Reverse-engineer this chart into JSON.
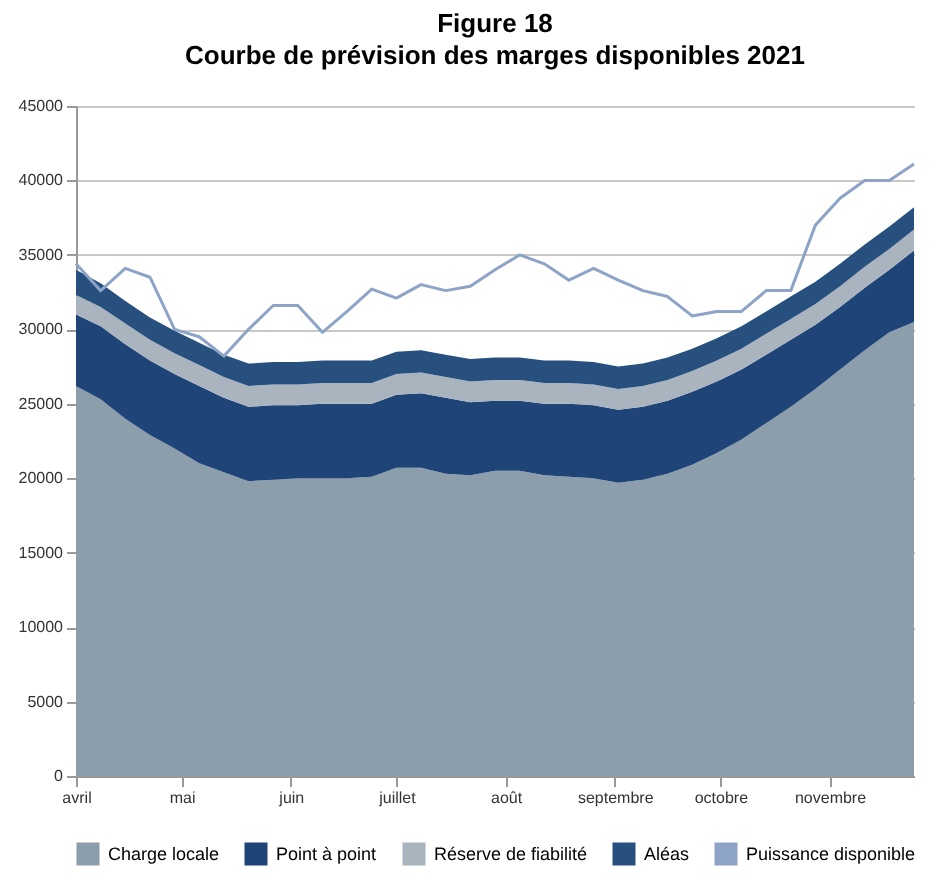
{
  "chart_data": {
    "type": "area",
    "stacked": true,
    "title": "Figure 18",
    "subtitle": "Courbe de prévision des marges disponibles 2021",
    "x": [
      "2021-04-01",
      "2021-04-08",
      "2021-04-15",
      "2021-04-22",
      "2021-04-29",
      "2021-05-06",
      "2021-05-13",
      "2021-05-20",
      "2021-05-27",
      "2021-06-03",
      "2021-06-10",
      "2021-06-17",
      "2021-06-24",
      "2021-07-01",
      "2021-07-08",
      "2021-07-15",
      "2021-07-22",
      "2021-07-29",
      "2021-08-05",
      "2021-08-12",
      "2021-08-19",
      "2021-08-26",
      "2021-09-02",
      "2021-09-09",
      "2021-09-16",
      "2021-09-23",
      "2021-09-30",
      "2021-10-07",
      "2021-10-14",
      "2021-10-21",
      "2021-10-28",
      "2021-11-04",
      "2021-11-11",
      "2021-11-18",
      "2021-11-25"
    ],
    "xlim": [
      "2021-04-01",
      "2021-11-25"
    ],
    "xticks": [
      {
        "value": "2021-04-01",
        "label": "avril"
      },
      {
        "value": "2021-05-01",
        "label": "mai"
      },
      {
        "value": "2021-06-01",
        "label": "juin"
      },
      {
        "value": "2021-07-01",
        "label": "juillet"
      },
      {
        "value": "2021-08-01",
        "label": "août"
      },
      {
        "value": "2021-09-01",
        "label": "septembre"
      },
      {
        "value": "2021-10-01",
        "label": "octobre"
      },
      {
        "value": "2021-11-01",
        "label": "novembre"
      }
    ],
    "ylim": [
      0,
      45000
    ],
    "yticks": [
      0,
      5000,
      10000,
      15000,
      20000,
      25000,
      30000,
      35000,
      40000,
      45000
    ],
    "grid": "y",
    "legend": "bottom",
    "series": [
      {
        "name": "Charge locale",
        "color": "#8c9dab",
        "values": [
          26200,
          25300,
          24000,
          22900,
          22000,
          21000,
          20400,
          19800,
          19900,
          20000,
          20000,
          20000,
          20100,
          20700,
          20700,
          20300,
          20200,
          20500,
          20500,
          20200,
          20100,
          20000,
          19700,
          19900,
          20300,
          20900,
          21700,
          22600,
          23700,
          24800,
          26000,
          27300,
          28600,
          29800,
          30500
        ]
      },
      {
        "name": "Point à point",
        "color": "#1f4477",
        "values": [
          4800,
          4900,
          5000,
          5000,
          5000,
          5200,
          5000,
          5000,
          5000,
          4900,
          5000,
          5000,
          4900,
          4900,
          5000,
          5100,
          4900,
          4700,
          4700,
          4800,
          4900,
          4900,
          4900,
          4900,
          4900,
          4900,
          4800,
          4700,
          4600,
          4500,
          4300,
          4200,
          4200,
          4200,
          4800
        ]
      },
      {
        "name": "Réserve de fiabilité",
        "color": "#aab4bf",
        "values": [
          1300,
          1300,
          1400,
          1400,
          1400,
          1400,
          1400,
          1400,
          1400,
          1400,
          1400,
          1400,
          1400,
          1400,
          1400,
          1400,
          1400,
          1400,
          1400,
          1400,
          1400,
          1400,
          1400,
          1400,
          1400,
          1400,
          1400,
          1400,
          1400,
          1400,
          1400,
          1400,
          1400,
          1400,
          1400
        ]
      },
      {
        "name": "Aléas",
        "color": "#27507f",
        "values": [
          1700,
          1600,
          1500,
          1500,
          1500,
          1500,
          1500,
          1500,
          1500,
          1500,
          1500,
          1500,
          1500,
          1500,
          1500,
          1500,
          1500,
          1500,
          1500,
          1500,
          1500,
          1500,
          1500,
          1500,
          1500,
          1500,
          1500,
          1500,
          1500,
          1500,
          1500,
          1500,
          1500,
          1500,
          1500
        ]
      },
      {
        "name": "Puissance disponible",
        "type": "line",
        "color": "#8da3c7",
        "values": [
          34400,
          32600,
          34100,
          33500,
          30000,
          29500,
          28200,
          30000,
          31600,
          31600,
          29800,
          31200,
          32700,
          32100,
          33000,
          32600,
          32900,
          34000,
          35000,
          34400,
          33300,
          34100,
          33300,
          32600,
          32200,
          30900,
          31200,
          31200,
          32600,
          32600,
          37000,
          38800,
          40000,
          40000,
          41100
        ]
      }
    ]
  }
}
